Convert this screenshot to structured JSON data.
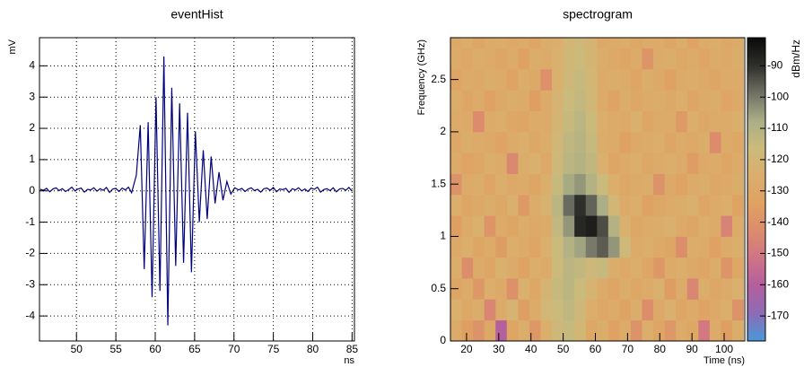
{
  "chart_data": [
    {
      "type": "line",
      "title": "eventHist",
      "ylabel": "mV",
      "xlabel": "ns",
      "x": [
        45.4,
        45.8,
        46.2,
        46.6,
        47.0,
        47.4,
        47.8,
        48.2,
        48.6,
        49.0,
        49.4,
        49.8,
        50.2,
        50.6,
        51.0,
        51.4,
        51.8,
        52.2,
        52.6,
        53.0,
        53.4,
        53.8,
        54.2,
        54.6,
        55.0,
        55.4,
        55.8,
        56.2,
        56.6,
        57.0,
        57.6,
        58.1,
        58.6,
        59.1,
        59.6,
        60.1,
        60.6,
        61.1,
        61.6,
        62.1,
        62.6,
        63.1,
        63.6,
        64.1,
        64.6,
        65.1,
        65.6,
        66.1,
        66.6,
        67.1,
        67.6,
        68.1,
        68.6,
        69.1,
        69.6,
        70.1,
        70.6,
        71.0,
        71.4,
        71.8,
        72.2,
        72.6,
        73.0,
        73.4,
        73.8,
        74.2,
        74.6,
        75.0,
        75.4,
        75.8,
        76.2,
        76.6,
        77.0,
        77.4,
        77.8,
        78.2,
        78.6,
        79.0,
        79.4,
        79.8,
        80.2,
        80.6,
        81.0,
        81.4,
        81.8,
        82.2,
        82.6,
        83.0,
        83.4,
        83.8,
        84.2,
        84.6,
        85.0
      ],
      "series": [
        {
          "color": "#00007f",
          "values": [
            0.05,
            0.02,
            0.08,
            -0.03,
            0.06,
            0.1,
            0.01,
            0.07,
            -0.02,
            0.04,
            0.12,
            0.0,
            0.06,
            0.09,
            -0.04,
            0.05,
            0.03,
            0.1,
            -0.01,
            0.07,
            0.02,
            0.11,
            -0.05,
            0.06,
            0.08,
            -0.02,
            0.09,
            0.03,
            0.12,
            -0.06,
            0.5,
            2.1,
            -2.5,
            2.2,
            -3.4,
            3.0,
            -3.2,
            4.3,
            -4.3,
            3.3,
            -2.4,
            2.8,
            -2.3,
            2.5,
            -2.6,
            1.9,
            -1.0,
            1.3,
            -0.9,
            1.1,
            -0.4,
            0.6,
            -0.3,
            0.3,
            -0.1,
            0.1,
            0.03,
            0.08,
            -0.02,
            0.06,
            0.1,
            0.01,
            0.05,
            -0.04,
            0.07,
            0.09,
            0.02,
            0.11,
            -0.03,
            0.06,
            0.04,
            0.08,
            -0.05,
            0.07,
            0.03,
            0.1,
            0.0,
            0.06,
            -0.02,
            0.09,
            0.05,
            0.12,
            -0.04,
            0.04,
            0.07,
            0.01,
            0.1,
            -0.03,
            0.06,
            0.08,
            0.02,
            0.11,
            -0.01
          ]
        }
      ],
      "xlim": [
        45.3,
        85.3
      ],
      "ylim": [
        -4.8,
        4.9
      ],
      "xticks": [
        50,
        55,
        60,
        65,
        70,
        75,
        80,
        85
      ],
      "yticks": [
        -4,
        -3,
        -2,
        -1,
        0,
        1,
        2,
        3,
        4
      ],
      "grid": true
    },
    {
      "type": "heatmap",
      "title": "spectrogram",
      "xlabel": "Time (ns)",
      "ylabel": "Frequency (GHz)",
      "zlabel": "dBm/Hz",
      "xbins": [
        15,
        18.5,
        22,
        25.5,
        29,
        32.5,
        36,
        39.5,
        43,
        46.5,
        50,
        53.5,
        57,
        60.5,
        64,
        67.5,
        71,
        74.5,
        78,
        81.5,
        85,
        88.5,
        92,
        95.5,
        99,
        102.5,
        106
      ],
      "ybins": [
        0,
        0.2,
        0.4,
        0.6,
        0.8,
        1.0,
        1.2,
        1.4,
        1.6,
        1.8,
        2.0,
        2.2,
        2.4,
        2.6,
        2.8,
        3.0
      ],
      "z": [
        [
          -128,
          -135,
          -140,
          -130,
          -160,
          -132,
          -126,
          -138,
          -125,
          -118,
          -115,
          -120,
          -130,
          -126,
          -134,
          -128,
          -140,
          -125,
          -132,
          -138,
          -127,
          -130,
          -150,
          -128,
          -135,
          -126
        ],
        [
          -124,
          -130,
          -126,
          -145,
          -128,
          -122,
          -135,
          -127,
          -120,
          -116,
          -113,
          -118,
          -125,
          -130,
          -127,
          -133,
          -126,
          -142,
          -129,
          -124,
          -131,
          -127,
          -133,
          -129,
          -125,
          -140
        ],
        [
          -131,
          -127,
          -138,
          -125,
          -129,
          -141,
          -124,
          -130,
          -122,
          -115,
          -112,
          -116,
          -122,
          -127,
          -132,
          -126,
          -130,
          -127,
          -124,
          -136,
          -128,
          -145,
          -126,
          -130,
          -128,
          -124
        ],
        [
          -126,
          -142,
          -128,
          -131,
          -124,
          -127,
          -133,
          -125,
          -128,
          -117,
          -112,
          -114,
          -118,
          -115,
          -126,
          -129,
          -125,
          -131,
          -138,
          -127,
          -125,
          -129,
          -132,
          -126,
          -139,
          -130
        ],
        [
          -129,
          -125,
          -131,
          -127,
          -136,
          -125,
          -128,
          -132,
          -124,
          -116,
          -110,
          -106,
          -100,
          -96,
          -104,
          -118,
          -127,
          -125,
          -129,
          -131,
          -142,
          -126,
          -128,
          -134,
          -127,
          -125
        ],
        [
          -135,
          -128,
          -124,
          -139,
          -127,
          -131,
          -126,
          -129,
          -127,
          -114,
          -104,
          -88,
          -86,
          -94,
          -110,
          -124,
          -130,
          -128,
          -126,
          -124,
          -129,
          -131,
          -125,
          -127,
          -146,
          -128
        ],
        [
          -125,
          -131,
          -129,
          -126,
          -130,
          -124,
          -137,
          -126,
          -123,
          -112,
          -98,
          -90,
          -97,
          -108,
          -120,
          -127,
          -125,
          -134,
          -130,
          -128,
          -126,
          -124,
          -131,
          -128,
          -125,
          -133
        ],
        [
          -140,
          -127,
          -126,
          -132,
          -125,
          -129,
          -127,
          -131,
          -125,
          -115,
          -107,
          -104,
          -110,
          -116,
          -125,
          -130,
          -128,
          -126,
          -140,
          -129,
          -133,
          -127,
          -126,
          -130,
          -129,
          -126
        ],
        [
          -127,
          -133,
          -130,
          -125,
          -128,
          -144,
          -126,
          -124,
          -129,
          -118,
          -112,
          -110,
          -113,
          -124,
          -131,
          -127,
          -125,
          -130,
          -127,
          -125,
          -128,
          -136,
          -129,
          -127,
          -131,
          -128
        ],
        [
          -130,
          -126,
          -128,
          -129,
          -133,
          -127,
          -125,
          -130,
          -126,
          -119,
          -113,
          -111,
          -115,
          -126,
          -128,
          -134,
          -129,
          -127,
          -125,
          -131,
          -127,
          -129,
          -126,
          -143,
          -128,
          -130
        ],
        [
          -128,
          -129,
          -143,
          -127,
          -125,
          -130,
          -131,
          -127,
          -128,
          -121,
          -115,
          -112,
          -117,
          -125,
          -127,
          -129,
          -124,
          -131,
          -128,
          -127,
          -137,
          -125,
          -130,
          -128,
          -127,
          -125
        ],
        [
          -126,
          -131,
          -127,
          -134,
          -129,
          -126,
          -128,
          -135,
          -127,
          -122,
          -116,
          -114,
          -119,
          -127,
          -133,
          -126,
          -130,
          -128,
          -126,
          -129,
          -125,
          -131,
          -127,
          -126,
          -132,
          -129
        ],
        [
          -132,
          -127,
          -129,
          -126,
          -128,
          -133,
          -126,
          -129,
          -141,
          -124,
          -118,
          -115,
          -120,
          -128,
          -126,
          -127,
          -132,
          -126,
          -129,
          -134,
          -128,
          -126,
          -129,
          -131,
          -127,
          -128
        ],
        [
          -127,
          -130,
          -126,
          -128,
          -131,
          -127,
          -134,
          -126,
          -128,
          -124,
          -119,
          -117,
          -121,
          -126,
          -129,
          -131,
          -127,
          -139,
          -127,
          -126,
          -130,
          -128,
          -132,
          -127,
          -129,
          -126
        ],
        [
          -129,
          -126,
          -131,
          -127,
          -126,
          -129,
          -127,
          -132,
          -126,
          -125,
          -120,
          -118,
          -122,
          -129,
          -127,
          -126,
          -130,
          -128,
          -127,
          -131,
          -126,
          -133,
          -128,
          -126,
          -130,
          -127
        ]
      ],
      "xlim": [
        15,
        106.4
      ],
      "ylim": [
        0,
        2.9
      ],
      "zlim": [
        -178,
        -81
      ],
      "xticks": [
        20,
        30,
        40,
        50,
        60,
        70,
        80,
        90,
        100
      ],
      "yticks": [
        0,
        0.5,
        1,
        1.5,
        2,
        2.5
      ],
      "zticks": [
        -90,
        -100,
        -110,
        -120,
        -130,
        -140,
        -150,
        -160,
        -170
      ],
      "colormap": [
        "#4a98d8",
        "#8c6bb5",
        "#b35f9e",
        "#cf7486",
        "#dc8c6c",
        "#dfa262",
        "#dbae6c",
        "#cbbb7c",
        "#aaae86",
        "#6f7064",
        "#2e2e2a",
        "#0a0a0a"
      ]
    }
  ]
}
